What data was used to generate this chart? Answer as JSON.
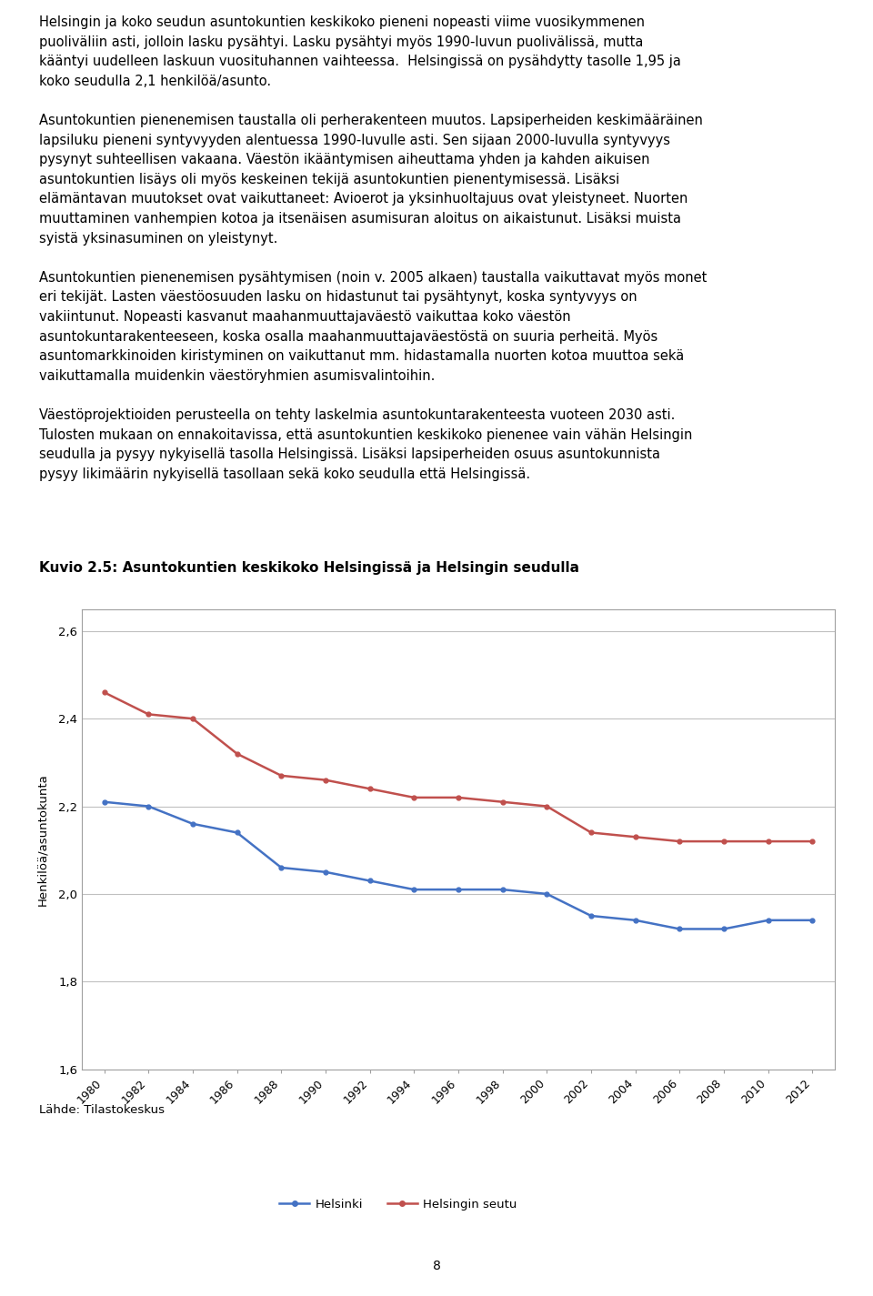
{
  "title": "Kuvio 2.5: Asuntokuntien keskikoko Helsingissä ja Helsingin seudulla",
  "ylabel": "Henkilöä/asuntokunta",
  "source_label": "Lähde: Tilastokeskus",
  "ylim": [
    1.6,
    2.65
  ],
  "yticks": [
    1.6,
    1.8,
    2.0,
    2.2,
    2.4,
    2.6
  ],
  "years": [
    1980,
    1982,
    1984,
    1986,
    1988,
    1990,
    1992,
    1994,
    1996,
    1998,
    2000,
    2002,
    2004,
    2006,
    2008,
    2010,
    2012
  ],
  "helsinki": [
    2.21,
    2.2,
    2.16,
    2.14,
    2.06,
    2.05,
    2.03,
    2.01,
    2.01,
    2.01,
    2.0,
    1.95,
    1.94,
    1.92,
    1.92,
    1.94,
    1.94
  ],
  "helsingin_seutu": [
    2.46,
    2.41,
    2.4,
    2.32,
    2.27,
    2.26,
    2.24,
    2.22,
    2.22,
    2.21,
    2.2,
    2.14,
    2.13,
    2.12,
    2.12,
    2.12,
    2.12
  ],
  "helsinki_color": "#4472C4",
  "helsingin_seutu_color": "#C0504D",
  "legend_helsinki": "Helsinki",
  "legend_helsingin_seutu": "Helsingin seutu",
  "grid_color": "#C0C0C0",
  "line_width": 1.8,
  "paragraphs": [
    "Helsingin ja koko seudun asuntokuntien keskikoko pieneni nopeasti viime vuosikymmenen puoliväliin asti, jolloin lasku pysähtyi. Lasku pysähtyi myös 1990-luvun puolivälissä, mutta kääntyi uudelleen laskuun vuosituhannen vaihteessa.  Helsingissä on pysähdytty tasolle 1,95 ja koko seudulla 2,1 henkilöä/asunto.",
    "Asuntokuntien pienenemisen taustalla oli perherakenteen muutos. Lapsiperheiden keskimääräinen lapsiluku pieneni syntyvyyden alentuessa 1990-luvulle asti. Sen sijaan 2000-luvulla syntyvyys pysynyt suhteellisen vakaana. Väestön ikääntymisen aiheuttama yhden ja kahden aikuisen asuntokuntien lisäys oli myös keskeinen tekijä asuntokuntien pienentymisessä. Lisäksi elämäntavan muutokset ovat vaikuttaneet: Avioerot ja yksinhuoltajuus ovat yleistyneet. Nuorten muuttaminen vanhempien kotoa ja itsenäisen asumisuran aloitus on aikaistunut. Lisäksi muista syistä yksinasuminen on yleistynyt.",
    "Asuntokuntien pienenemisen pysähtymisen (noin v. 2005 alkaen) taustalla vaikuttavat myös monet eri tekijät. Lasten väestöosuuden lasku on hidastunut tai pysähtynyt, koska syntyvyys on vakiintunut. Nopeasti kasvanut maahanmuuttajaväestö vaikuttaa koko väestön asuntokuntarakenteeseen, koska osalla maahanmuuttajaväestöstä on suuria perheitä. Myös asuntomarkkinoiden kiristyminen on vaikuttanut mm. hidastamalla nuorten kotoa muuttoa sekä vaikuttamalla muidenkin väestöryhmien asumisvalintoihin.",
    "Väestöprojektioiden perusteella on tehty laskelmia asuntokuntarakenteesta vuoteen 2030 asti. Tulosten mukaan on ennakoitavissa, että asuntokuntien keskikoko pienenee vain vähän Helsingin seudulla ja pysyy nykyisellä tasolla Helsingissä. Lisäksi lapsiperheiden osuus asuntokunnista pysyy likimäärin nykyisellä tasollaan sekä koko seudulla että Helsingissä."
  ],
  "page_number": "8"
}
